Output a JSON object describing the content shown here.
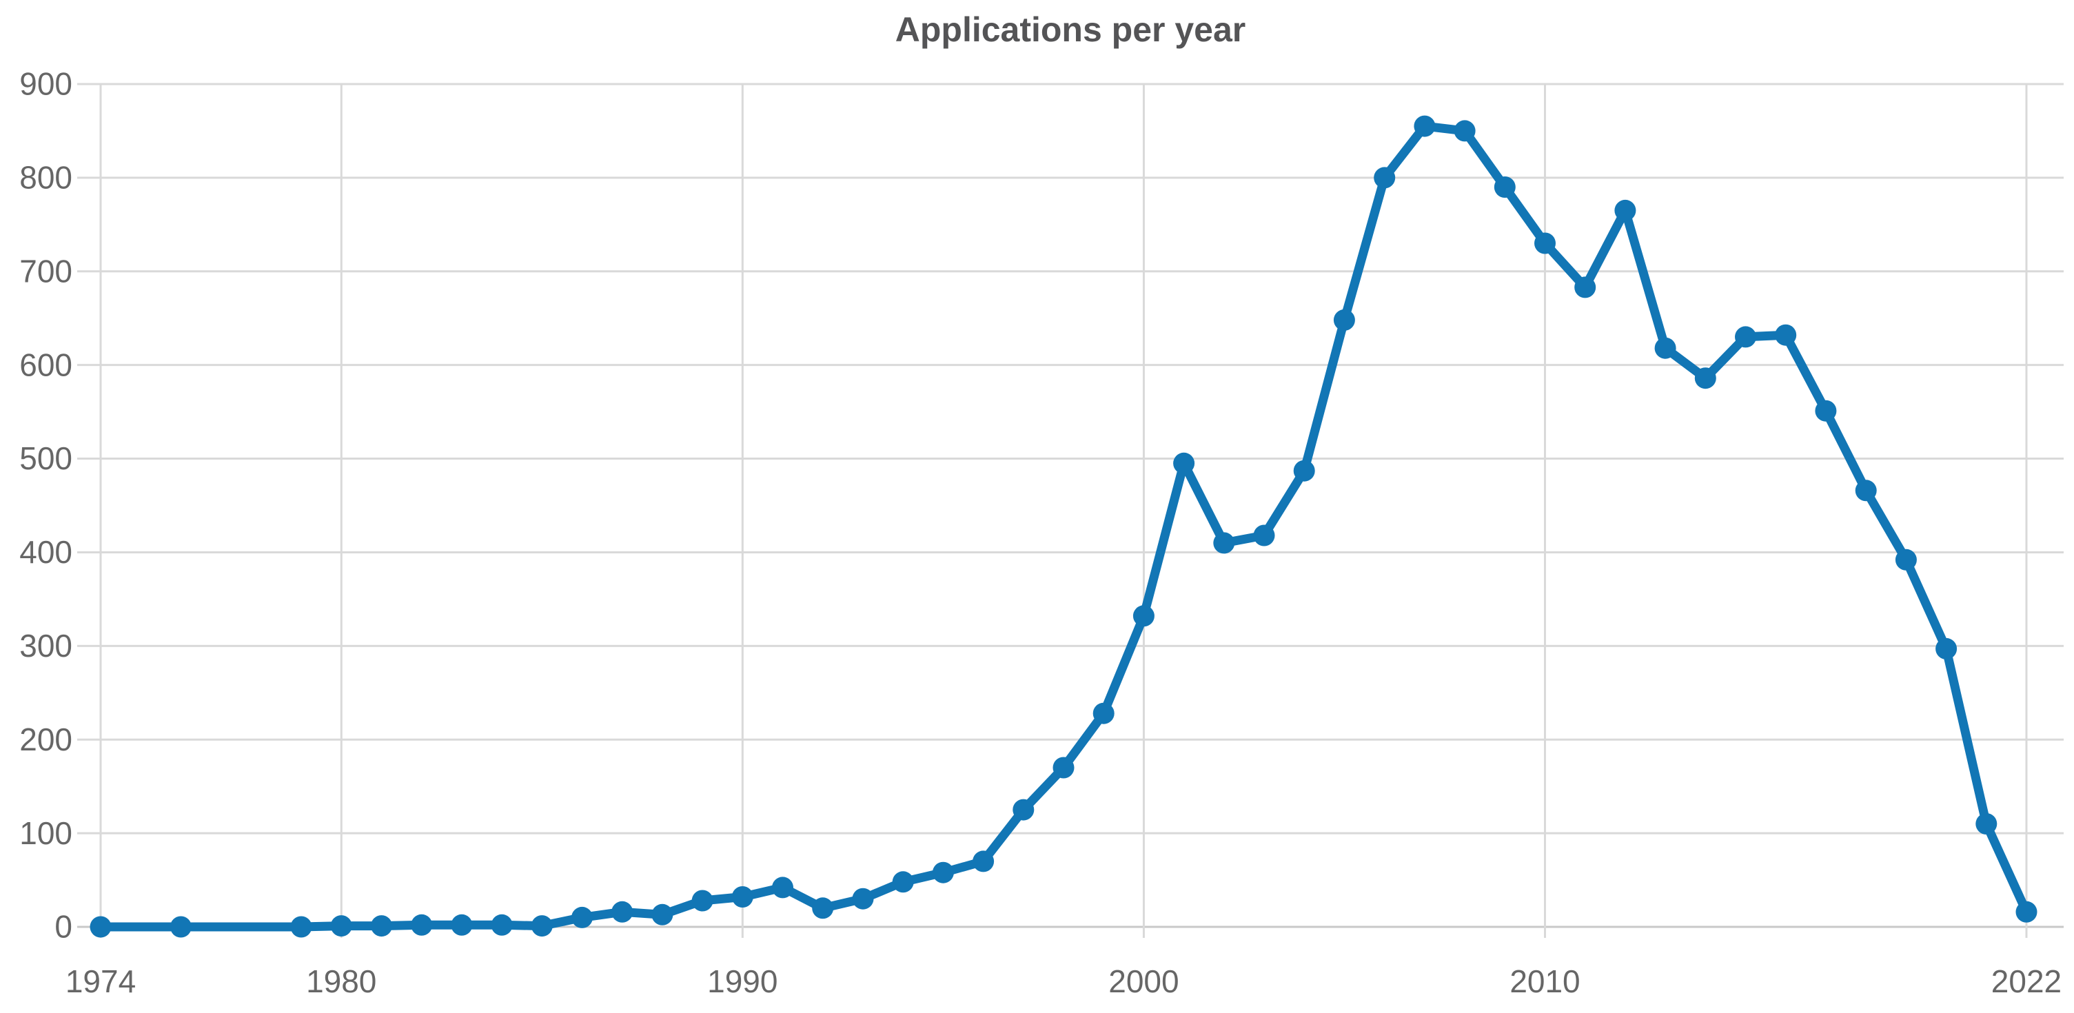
{
  "chart_data": {
    "type": "line",
    "title": "Applications per year",
    "xlabel": "",
    "ylabel": "",
    "legend": "none",
    "grid": true,
    "xlim": [
      1974,
      2022
    ],
    "ylim": [
      0,
      900
    ],
    "xticks": [
      1974,
      1980,
      1990,
      2000,
      2010,
      2022
    ],
    "yticks": [
      0,
      100,
      200,
      300,
      400,
      500,
      600,
      700,
      800,
      900
    ],
    "series": [
      {
        "name": "Applications",
        "x": [
          1974,
          1976,
          1979,
          1980,
          1981,
          1982,
          1983,
          1984,
          1985,
          1986,
          1987,
          1988,
          1989,
          1990,
          1991,
          1992,
          1993,
          1994,
          1995,
          1996,
          1997,
          1998,
          1999,
          2000,
          2001,
          2002,
          2003,
          2004,
          2005,
          2006,
          2007,
          2008,
          2009,
          2010,
          2011,
          2012,
          2013,
          2014,
          2015,
          2016,
          2017,
          2018,
          2019,
          2020,
          2021,
          2022
        ],
        "values": [
          0,
          0,
          0,
          1,
          1,
          2,
          2,
          2,
          1,
          10,
          16,
          13,
          28,
          32,
          42,
          20,
          30,
          48,
          58,
          70,
          125,
          170,
          228,
          332,
          495,
          410,
          418,
          487,
          648,
          800,
          855,
          850,
          790,
          730,
          683,
          765,
          618,
          586,
          630,
          632,
          551,
          466,
          392,
          297,
          110,
          16
        ]
      }
    ],
    "colors": {
      "line": "#1276b5",
      "marker": "#1276b5",
      "grid": "#d9d9d9",
      "zero_line": "#c9c9c9",
      "axis_label": "#666666",
      "title": "#545456"
    }
  }
}
